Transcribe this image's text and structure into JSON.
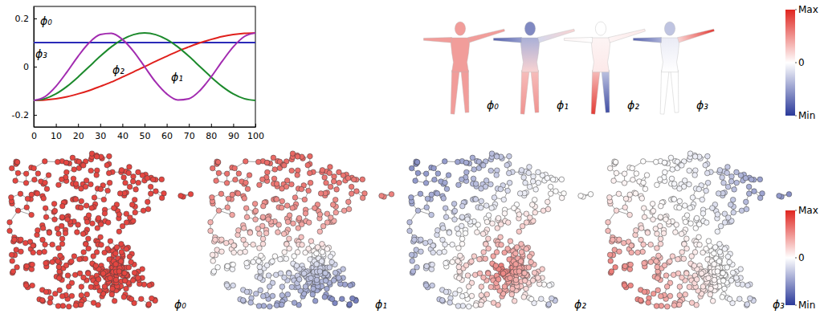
{
  "chart_data": [
    {
      "type": "line",
      "x": [
        0,
        5,
        10,
        15,
        20,
        25,
        30,
        35,
        40,
        45,
        50,
        55,
        60,
        65,
        70,
        75,
        80,
        85,
        90,
        95,
        100
      ],
      "xlim": [
        0,
        100
      ],
      "xticks": [
        0,
        10,
        20,
        30,
        40,
        50,
        60,
        70,
        80,
        90,
        100
      ],
      "ylim": [
        -0.25,
        0.25
      ],
      "yticks": [
        -0.2,
        0,
        0.2
      ],
      "series": [
        {
          "name": "ϕ₀",
          "color": "#2a2ab8",
          "values": [
            0.1,
            0.1,
            0.1,
            0.1,
            0.1,
            0.1,
            0.1,
            0.1,
            0.1,
            0.1,
            0.1,
            0.1,
            0.1,
            0.1,
            0.1,
            0.1,
            0.1,
            0.1,
            0.1,
            0.1,
            0.1
          ]
        },
        {
          "name": "ϕ₁",
          "color": "#e0201c",
          "values": [
            -0.14,
            -0.138,
            -0.133,
            -0.125,
            -0.113,
            -0.099,
            -0.082,
            -0.064,
            -0.043,
            -0.022,
            0,
            0.022,
            0.043,
            0.064,
            0.082,
            0.099,
            0.113,
            0.125,
            0.133,
            0.138,
            0.14
          ]
        },
        {
          "name": "ϕ₂",
          "color": "#1c8a2c",
          "values": [
            -0.14,
            -0.133,
            -0.113,
            -0.082,
            -0.043,
            0,
            0.043,
            0.082,
            0.113,
            0.133,
            0.14,
            0.133,
            0.113,
            0.082,
            0.043,
            0,
            -0.043,
            -0.082,
            -0.113,
            -0.133,
            -0.14
          ]
        },
        {
          "name": "ϕ₃",
          "color": "#a22bb0",
          "values": [
            -0.14,
            -0.125,
            -0.082,
            -0.022,
            0.043,
            0.099,
            0.133,
            0.138,
            0.113,
            0.064,
            0,
            -0.064,
            -0.113,
            -0.138,
            -0.133,
            -0.099,
            -0.043,
            0.022,
            0.082,
            0.125,
            0.14
          ]
        }
      ]
    },
    {
      "type": "mesh",
      "panels": [
        {
          "label": "ϕ₀",
          "values": [
            [
              0.45,
              0.45
            ],
            [
              0.45,
              0.45
            ],
            [
              0.45,
              0.45
            ],
            [
              0.45,
              0.45
            ],
            [
              0.45,
              0.45
            ],
            [
              0.45,
              0.45
            ]
          ]
        },
        {
          "label": "ϕ₁",
          "values": [
            [
              -0.6,
              -0.6
            ],
            [
              -0.4,
              0.2
            ],
            [
              -0.5,
              -0.8
            ],
            [
              -0.2,
              0.2
            ],
            [
              0.3,
              0.5
            ],
            [
              0.3,
              0.5
            ]
          ]
        },
        {
          "label": "ϕ₂",
          "values": [
            [
              0,
              0
            ],
            [
              0.05,
              0.1
            ],
            [
              0,
              0.05
            ],
            [
              0.05,
              0.1
            ],
            [
              0.3,
              0.9
            ],
            [
              -0.3,
              -0.9
            ]
          ]
        },
        {
          "label": "ϕ₃",
          "values": [
            [
              -0.3,
              -0.3
            ],
            [
              -0.1,
              0
            ],
            [
              -0.4,
              -0.8
            ],
            [
              0.2,
              0.9
            ],
            [
              0,
              0
            ],
            [
              0,
              0
            ]
          ]
        }
      ],
      "colorbar": {
        "range": [
          -1,
          1
        ],
        "colors": [
          "#2b3a9a",
          "#ffffff",
          "#e0251f"
        ],
        "ticks": [
          {
            "value": 1,
            "label": "Max"
          },
          0,
          {
            "value": -1,
            "label": "Min"
          }
        ]
      }
    },
    {
      "type": "graph",
      "panels": [
        {
          "label": "ϕ₀",
          "values": [
            [
              0.85,
              0.85,
              0.85,
              0.85,
              0.85
            ],
            [
              0.85,
              0.85,
              0.85,
              0.85,
              0.85
            ],
            [
              0.85,
              0.85,
              0.85,
              0.85,
              0.85
            ],
            [
              0.85,
              0.85,
              0.85,
              0.85,
              0.85
            ],
            [
              0.85,
              0.85,
              0.85,
              0.85,
              0.85
            ]
          ]
        },
        {
          "label": "ϕ₁",
          "values": [
            [
              0.7,
              0.7,
              0.7,
              0.7,
              0.7
            ],
            [
              0.6,
              0.6,
              0.6,
              0.6,
              0.6
            ],
            [
              0.3,
              0.3,
              0.4,
              0.3,
              0.3
            ],
            [
              0,
              -0.1,
              -0.2,
              -0.3,
              -0.4
            ],
            [
              -0.3,
              -0.4,
              -0.5,
              -0.7,
              -0.8
            ]
          ]
        },
        {
          "label": "ϕ₂",
          "values": [
            [
              -0.6,
              -0.5,
              -0.3,
              -0.1,
              0
            ],
            [
              -0.5,
              -0.4,
              -0.2,
              0,
              0
            ],
            [
              -0.3,
              -0.1,
              0.2,
              0.3,
              0
            ],
            [
              -0.4,
              0.1,
              0.6,
              0.2,
              -0.2
            ],
            [
              -0.6,
              -0.2,
              0.3,
              -0.3,
              -0.6
            ]
          ]
        },
        {
          "label": "ϕ₃",
          "values": [
            [
              0,
              0,
              -0.1,
              -0.4,
              -0.7
            ],
            [
              0.1,
              0,
              -0.1,
              -0.4,
              -0.6
            ],
            [
              0.3,
              0.1,
              0,
              -0.2,
              -0.3
            ],
            [
              0.6,
              0.4,
              0.1,
              -0.1,
              -0.2
            ],
            [
              0.7,
              0.5,
              0.2,
              -0.2,
              -0.3
            ]
          ]
        }
      ],
      "colorbar": {
        "range": [
          -1,
          1
        ],
        "colors": [
          "#2b3a9a",
          "#ffffff",
          "#e0251f"
        ],
        "ticks": [
          {
            "value": 1,
            "label": "Max"
          },
          0,
          {
            "value": -1,
            "label": "Min"
          }
        ]
      }
    }
  ]
}
